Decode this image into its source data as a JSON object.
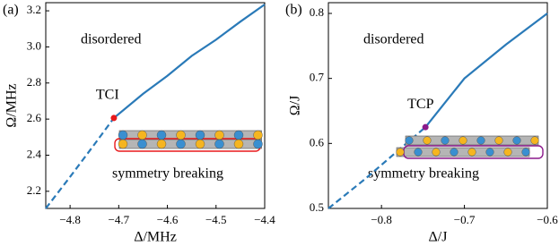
{
  "chart_data": [
    {
      "type": "line",
      "panel_label": "(a)",
      "xlabel": "Δ/MHz",
      "ylabel": "Ω/MHz",
      "color": "#2a7ab8",
      "xlim": [
        -4.85,
        -4.4
      ],
      "ylim": [
        2.105,
        3.245
      ],
      "xticks": [
        {
          "value": -4.8,
          "label": "−4.8"
        },
        {
          "value": -4.7,
          "label": "−4.7"
        },
        {
          "value": -4.6,
          "label": "−4.6"
        },
        {
          "value": -4.5,
          "label": "−4.5"
        },
        {
          "value": -4.4,
          "label": "−4.4"
        }
      ],
      "yticks": [
        2.2,
        2.4,
        2.6,
        2.8,
        {
          "value": 3.0,
          "label": "3.0"
        },
        3.2
      ],
      "lines": [
        {
          "style": "dashed",
          "x": [
            -4.85,
            -4.8,
            -4.75,
            -4.71
          ],
          "y": [
            2.105,
            2.28,
            2.46,
            2.606
          ]
        },
        {
          "style": "solid",
          "x": [
            -4.71,
            -4.65,
            -4.6,
            -4.55,
            -4.5,
            -4.45,
            -4.4
          ],
          "y": [
            2.606,
            2.74,
            2.84,
            2.95,
            3.04,
            3.14,
            3.235
          ]
        }
      ],
      "point": {
        "label": "TCI",
        "x": -4.71,
        "y": 2.606,
        "color": "#e8191c"
      },
      "annotations": [
        "disordered",
        "symmetry breaking"
      ]
    },
    {
      "type": "line",
      "panel_label": "(b)",
      "xlabel": "Δ/J",
      "ylabel": "Ω/J",
      "color": "#2a7ab8",
      "xlim": [
        -0.864,
        -0.6
      ],
      "ylim": [
        0.5,
        0.8165
      ],
      "xticks": [
        {
          "value": -0.8,
          "label": "−0.8"
        },
        {
          "value": -0.7,
          "label": "−0.7"
        },
        {
          "value": -0.6,
          "label": "−0.6"
        }
      ],
      "yticks": [
        0.5,
        0.6,
        0.7,
        0.8
      ],
      "lines": [
        {
          "style": "dashed",
          "x": [
            -0.864,
            -0.82,
            -0.78,
            -0.747
          ],
          "y": [
            0.5,
            0.545,
            0.589,
            0.625
          ]
        },
        {
          "style": "solid",
          "x": [
            -0.747,
            -0.7,
            -0.65,
            -0.6
          ],
          "y": [
            0.625,
            0.7,
            0.752,
            0.8
          ]
        }
      ],
      "point": {
        "label": "TCP",
        "x": -0.747,
        "y": 0.625,
        "color": "#8b1a8b"
      },
      "annotations": [
        "disordered",
        "symmetry breaking"
      ]
    }
  ]
}
